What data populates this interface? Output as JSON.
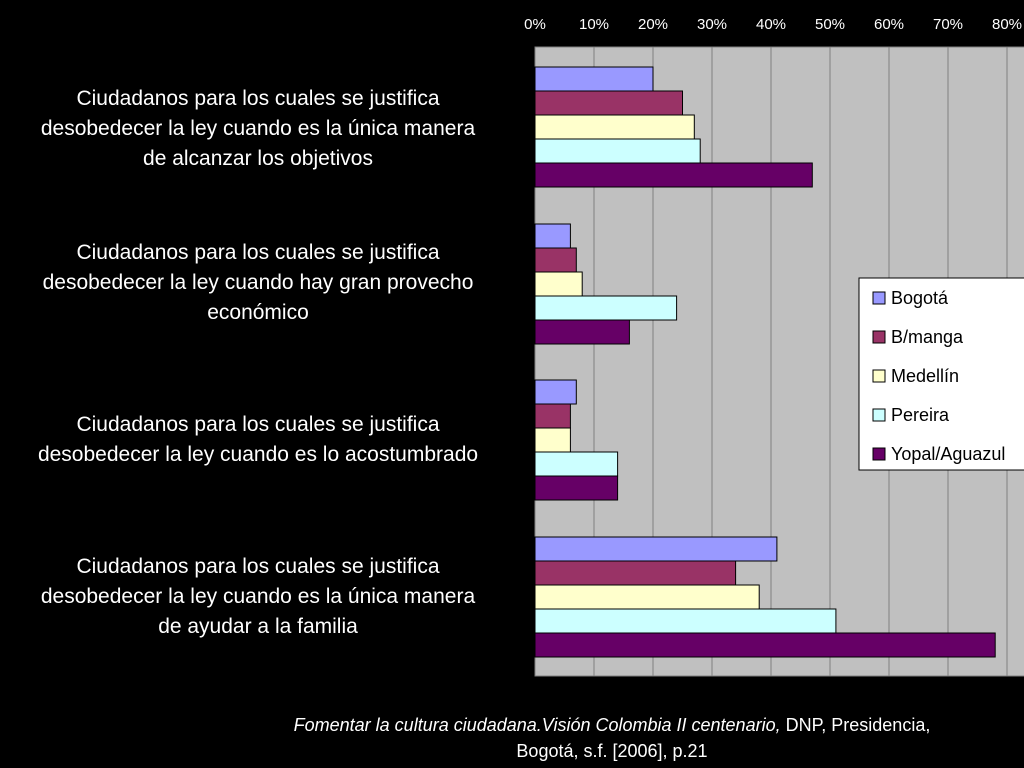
{
  "chart_data": {
    "type": "bar",
    "orientation": "horizontal",
    "categories": [
      "Ciudadanos para los cuales se justifica desobedecer la ley cuando es la única manera de alcanzar los objetivos",
      "Ciudadanos para los cuales se justifica desobedecer la ley cuando hay gran provecho económico",
      "Ciudadanos para los cuales se justifica desobedecer la ley cuando es lo acostumbrado",
      "Ciudadanos para los cuales se justifica desobedecer la ley cuando es la única manera de ayudar a la familia"
    ],
    "category_lines": [
      [
        "Ciudadanos para los cuales se justifica",
        "desobedecer la ley cuando es la única manera",
        "de alcanzar los objetivos"
      ],
      [
        "Ciudadanos para los cuales se justifica",
        "desobedecer la ley cuando hay gran provecho",
        "económico"
      ],
      [
        "Ciudadanos para los cuales se justifica",
        "desobedecer la ley cuando es lo acostumbrado"
      ],
      [
        "Ciudadanos para los cuales se justifica",
        "desobedecer la ley cuando es la única manera",
        "de ayudar a la familia"
      ]
    ],
    "series": [
      {
        "name": "Bogotá",
        "color": "#9999ff",
        "values": [
          20,
          6,
          7,
          41
        ]
      },
      {
        "name": "B/manga",
        "color": "#993366",
        "values": [
          25,
          7,
          6,
          34
        ]
      },
      {
        "name": "Medellín",
        "color": "#ffffcc",
        "values": [
          27,
          8,
          6,
          38
        ]
      },
      {
        "name": "Pereira",
        "color": "#ccffff",
        "values": [
          28,
          24,
          14,
          51
        ]
      },
      {
        "name": "Yopal/Aguazul",
        "color": "#660066",
        "values": [
          47,
          16,
          14,
          78
        ]
      }
    ],
    "xlim": [
      0,
      80
    ],
    "x_ticks": [
      "0%",
      "10%",
      "20%",
      "30%",
      "40%",
      "50%",
      "60%",
      "70%",
      "80%"
    ],
    "x_tick_values": [
      0,
      10,
      20,
      30,
      40,
      50,
      60,
      70,
      80
    ],
    "x_axis_position": "top",
    "grid": true,
    "plot_background": "#c0c0c0",
    "legend_position": "right"
  },
  "caption": {
    "italic_text": "Fomentar la cultura ciudadana.Visión Colombia II centenario,",
    "plain_text_1": " DNP, Presidencia,",
    "plain_text_2": "Bogotá, s.f. [2006], p.21"
  }
}
